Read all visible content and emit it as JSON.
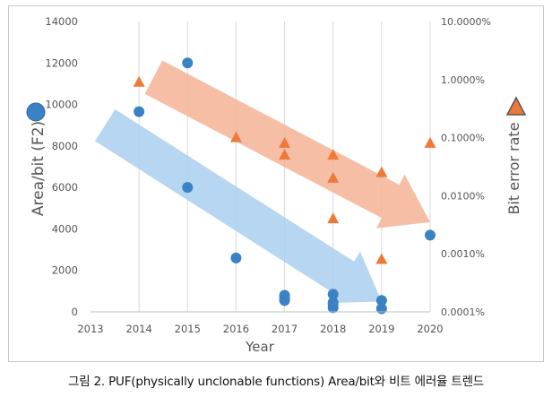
{
  "caption": "그림 2. PUF(physically unclonable functions)  Area/bit와 비트 에러율 트렌드",
  "chart_data": {
    "type": "scatter",
    "xlabel": "Year",
    "ylabel_left": "Area/bit (F2)",
    "ylabel_right": "Bit error rate",
    "xlim": [
      2013,
      2020
    ],
    "x_ticks": [
      "2013",
      "2014",
      "2015",
      "2016",
      "2017",
      "2018",
      "2019",
      "2020"
    ],
    "ylim_left": [
      0,
      14000
    ],
    "y_ticks_left": [
      "0",
      "2000",
      "4000",
      "6000",
      "8000",
      "10000",
      "12000",
      "14000"
    ],
    "ylim_right_log": [
      0.0001,
      10
    ],
    "right_scale": "log",
    "y_ticks_right": [
      "0.0001%",
      "0.0010%",
      "0.0100%",
      "0.1000%",
      "1.0000%",
      "10.0000%"
    ],
    "grid": "vertical",
    "colors": {
      "area": "#3a82c4",
      "ber": "#ee7a3a",
      "area_arrow": "#a9cfee",
      "ber_arrow": "#f6b396"
    },
    "series": [
      {
        "name": "Area/bit (F2)",
        "marker": "circle",
        "axis": "left",
        "points": [
          [
            2014,
            9650
          ],
          [
            2015,
            12000
          ],
          [
            2015,
            6000
          ],
          [
            2016,
            2600
          ],
          [
            2017,
            800
          ],
          [
            2017,
            650
          ],
          [
            2017,
            550
          ],
          [
            2018,
            850
          ],
          [
            2018,
            450
          ],
          [
            2018,
            350
          ],
          [
            2018,
            200
          ],
          [
            2019,
            550
          ],
          [
            2019,
            150
          ],
          [
            2020,
            3700
          ]
        ]
      },
      {
        "name": "Bit error rate",
        "marker": "triangle",
        "axis": "right",
        "points": [
          [
            2014,
            0.9
          ],
          [
            2016,
            0.1
          ],
          [
            2017,
            0.08
          ],
          [
            2017,
            0.05
          ],
          [
            2018,
            0.05
          ],
          [
            2018,
            0.02
          ],
          [
            2018,
            0.004
          ],
          [
            2019,
            0.025
          ],
          [
            2019,
            0.0008
          ],
          [
            2020,
            0.08
          ]
        ]
      }
    ],
    "trend_arrows": [
      {
        "series": "Bit error rate",
        "from": [
          2014.3,
          1.1
        ],
        "to": [
          2020,
          0.0035
        ]
      },
      {
        "series": "Area/bit (F2)",
        "from": [
          2013.3,
          9000
        ],
        "to": [
          2019,
          500
        ]
      }
    ]
  }
}
